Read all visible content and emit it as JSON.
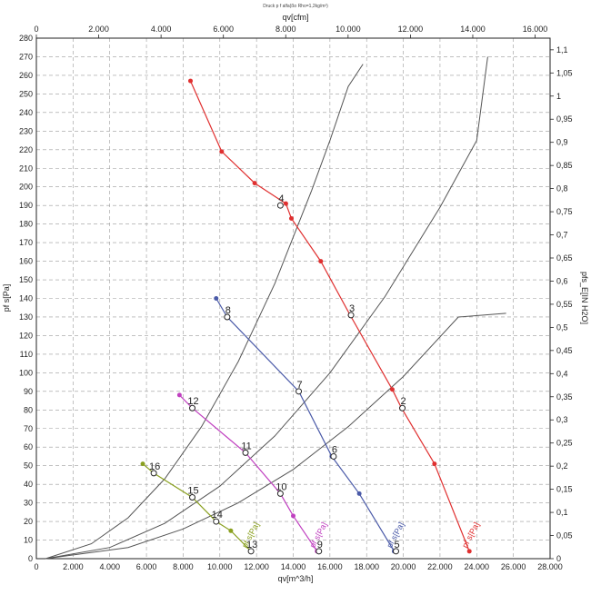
{
  "chart_data": {
    "type": "line",
    "title": "Druck p f alfa(ßo Rho=1,2kg/m³)",
    "xlabel_bottom": "qv[m^3/h]",
    "xlabel_top": "qv[cfm]",
    "ylabel_left": "pf s[Pa]",
    "ylabel_right": "pfs_E[IN H2O]",
    "xlim": [
      0,
      28000
    ],
    "ylim": [
      0,
      280
    ],
    "grid": true,
    "x_ticks": [
      "0",
      "2.000",
      "4.000",
      "6.000",
      "8.000",
      "10.000",
      "12.000",
      "14.000",
      "16.000",
      "18.000",
      "20.000",
      "22.000",
      "24.000",
      "26.000",
      "28.000"
    ],
    "y_ticks": [
      "0",
      "10",
      "20",
      "30",
      "40",
      "50",
      "60",
      "70",
      "80",
      "90",
      "100",
      "110",
      "120",
      "130",
      "140",
      "150",
      "160",
      "170",
      "180",
      "190",
      "200",
      "210",
      "220",
      "230",
      "240",
      "250",
      "260",
      "270",
      "280"
    ],
    "top_ticks": [
      "0",
      "2.000",
      "4.000",
      "6.000",
      "8.000",
      "10.000",
      "12.000",
      "14.000",
      "16.000"
    ],
    "right_ticks": [
      "0",
      "0,05",
      "0,1",
      "0,15",
      "0,2",
      "0,25",
      "0,3",
      "0,35",
      "0,4",
      "0,45",
      "0,5",
      "0,55",
      "0,6",
      "0,65",
      "0,7",
      "0,75",
      "0,8",
      "0,85",
      "0,9",
      "0,95",
      "1",
      "1,05",
      "1,1"
    ],
    "series": [
      {
        "color": "#e03030",
        "label": "pf s[Pa]",
        "values": [
          [
            8400,
            257
          ],
          [
            10100,
            219
          ],
          [
            11900,
            202
          ],
          [
            13600,
            191
          ],
          [
            13900,
            183
          ],
          [
            15500,
            160
          ],
          [
            17100,
            131
          ],
          [
            19400,
            91
          ],
          [
            19900,
            81
          ],
          [
            21700,
            51
          ],
          [
            23600,
            4
          ]
        ]
      },
      {
        "color": "#4a5aa8",
        "label": "pf s[Pa]",
        "values": [
          [
            9800,
            140
          ],
          [
            10400,
            130
          ],
          [
            14300,
            90
          ],
          [
            16100,
            55
          ],
          [
            17600,
            35
          ],
          [
            19500,
            4
          ]
        ]
      },
      {
        "color": "#c040c0",
        "label": "pf s[Pa]",
        "values": [
          [
            7800,
            88
          ],
          [
            8500,
            81
          ],
          [
            11400,
            57
          ],
          [
            13300,
            35
          ],
          [
            14000,
            23
          ],
          [
            15300,
            4
          ]
        ]
      },
      {
        "color": "#8aa020",
        "label": "pf s[Pa]",
        "values": [
          [
            5800,
            51
          ],
          [
            6400,
            46
          ],
          [
            8500,
            33
          ],
          [
            9800,
            20
          ],
          [
            10600,
            15
          ],
          [
            11700,
            4
          ]
        ]
      }
    ],
    "system_curves": [
      {
        "color": "#555555",
        "values": [
          [
            500,
            0
          ],
          [
            3000,
            8
          ],
          [
            5000,
            22
          ],
          [
            7000,
            43
          ],
          [
            9000,
            71
          ],
          [
            11000,
            106
          ],
          [
            13000,
            148
          ],
          [
            15000,
            198
          ],
          [
            16000,
            225
          ],
          [
            17000,
            254
          ],
          [
            17800,
            266
          ]
        ]
      },
      {
        "color": "#555555",
        "values": [
          [
            500,
            0
          ],
          [
            4000,
            6
          ],
          [
            7000,
            19
          ],
          [
            10000,
            39
          ],
          [
            13000,
            66
          ],
          [
            16000,
            100
          ],
          [
            19000,
            141
          ],
          [
            22000,
            189
          ],
          [
            24000,
            225
          ],
          [
            24600,
            270
          ]
        ]
      },
      {
        "color": "#555555",
        "values": [
          [
            500,
            0
          ],
          [
            5000,
            6
          ],
          [
            8000,
            16
          ],
          [
            11000,
            30
          ],
          [
            14000,
            48
          ],
          [
            17000,
            71
          ],
          [
            20000,
            98
          ],
          [
            23000,
            130
          ],
          [
            25600,
            132
          ]
        ]
      }
    ],
    "point_labels": [
      {
        "text": "2",
        "x": 19950,
        "y": 81
      },
      {
        "text": "3",
        "x": 17150,
        "y": 131
      },
      {
        "text": "4",
        "x": 13300,
        "y": 190
      },
      {
        "text": "5",
        "x": 19600,
        "y": 4
      },
      {
        "text": "6",
        "x": 16200,
        "y": 55
      },
      {
        "text": "7",
        "x": 14300,
        "y": 90
      },
      {
        "text": "8",
        "x": 10400,
        "y": 130
      },
      {
        "text": "9",
        "x": 15400,
        "y": 4
      },
      {
        "text": "10",
        "x": 13300,
        "y": 35
      },
      {
        "text": "11",
        "x": 11400,
        "y": 57
      },
      {
        "text": "12",
        "x": 8500,
        "y": 81
      },
      {
        "text": "13",
        "x": 11700,
        "y": 4
      },
      {
        "text": "14",
        "x": 9800,
        "y": 20
      },
      {
        "text": "15",
        "x": 8500,
        "y": 33
      },
      {
        "text": "16",
        "x": 6400,
        "y": 46
      }
    ],
    "curve_labels": [
      {
        "text": "pf s[Pa]",
        "x": 23800,
        "y": 12,
        "color": "#e03030"
      },
      {
        "text": "pf s[Pa]",
        "x": 19700,
        "y": 12,
        "color": "#4a5aa8"
      },
      {
        "text": "pf s[Pa]",
        "x": 15500,
        "y": 12,
        "color": "#c040c0"
      },
      {
        "text": "pf s[Pa]",
        "x": 11800,
        "y": 12,
        "color": "#8aa020"
      }
    ]
  }
}
